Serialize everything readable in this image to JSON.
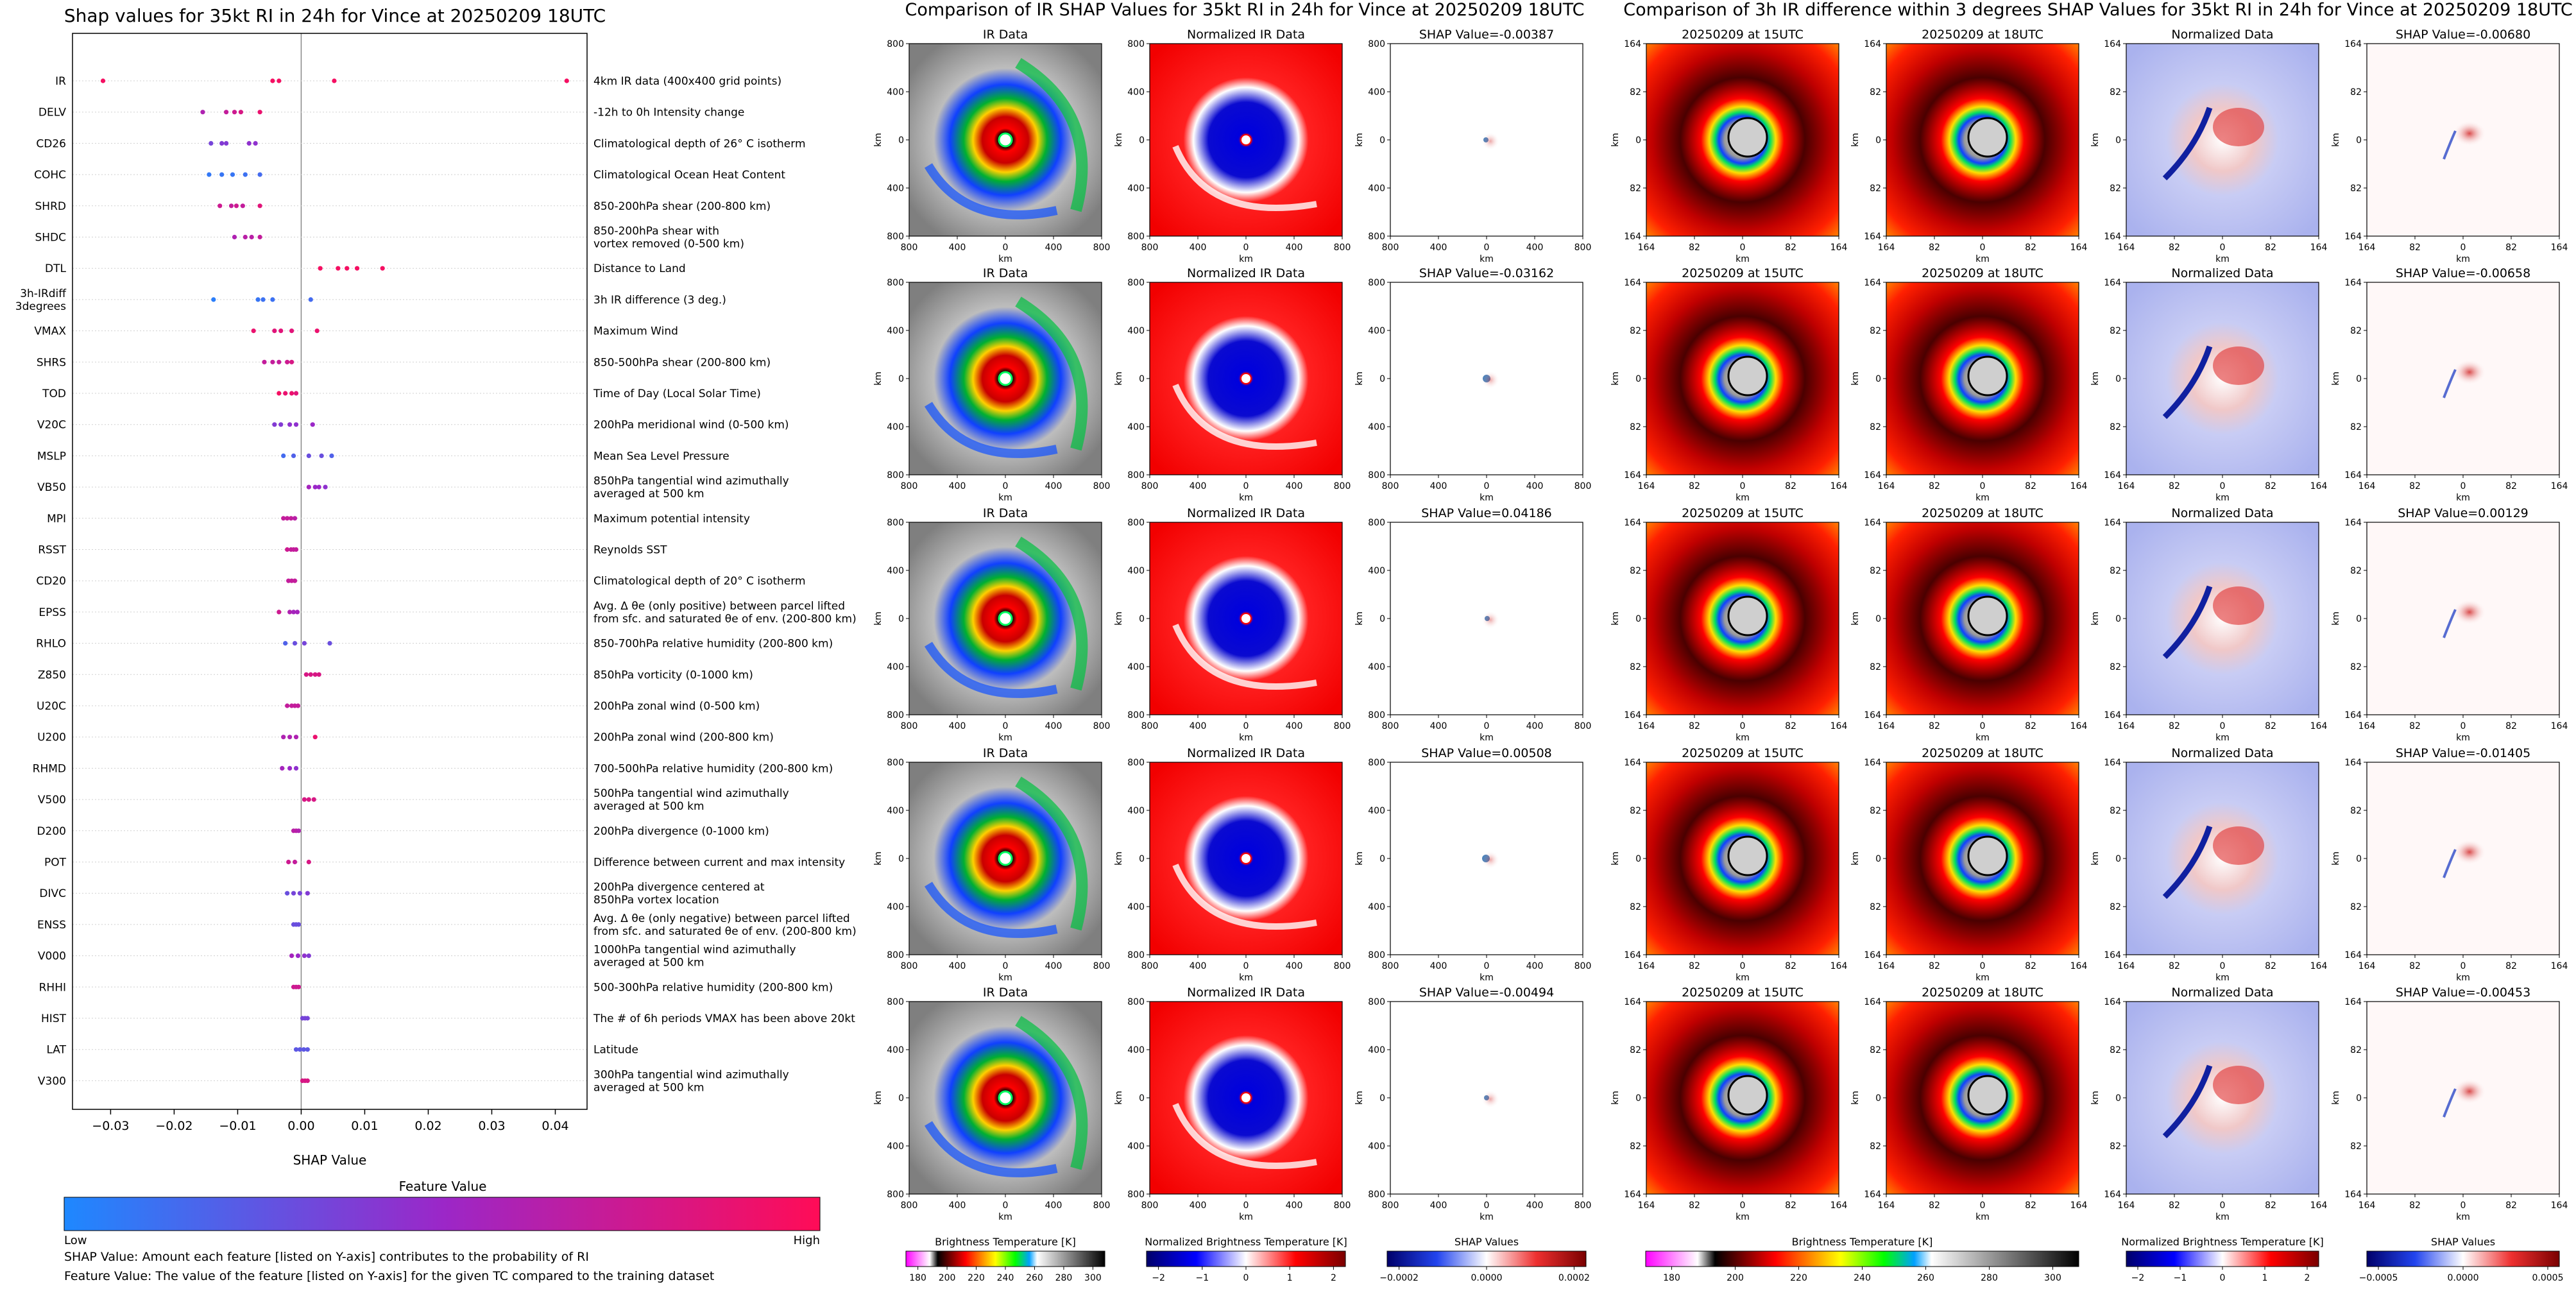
{
  "colors": {
    "low": "#1e88ff",
    "mid": "#9b27c8",
    "high": "#ff0c57",
    "ir_bg": "#9e9e9e",
    "shap_pos": "#b2182b",
    "shap_neg": "#2166ac"
  },
  "beeswarm": {
    "title": "Shap values for 35kt RI in 24h for Vince at 20250209 18UTC",
    "xlabel": "SHAP Value",
    "colorbar_title": "Feature Value",
    "colorbar_low": "Low",
    "colorbar_high": "High",
    "note_shap": "SHAP Value: Amount each feature [listed on Y-axis] contributes to the probability of RI",
    "note_feature": "Feature Value: The value of the feature [listed on Y-axis] for the given TC compared to the training dataset"
  },
  "chart_data": [
    {
      "type": "scatter",
      "title": "Shap values for 35kt RI in 24h for Vince at 20250209 18UTC",
      "xlabel": "SHAP Value",
      "xlim": [
        -0.036,
        0.045
      ],
      "xticks": [
        -0.03,
        -0.02,
        -0.01,
        0.0,
        0.01,
        0.02,
        0.03,
        0.04
      ],
      "xtick_labels": [
        "−0.03",
        "−0.02",
        "−0.01",
        "0.00",
        "0.01",
        "0.02",
        "0.03",
        "0.04"
      ],
      "features": [
        {
          "name": "IR",
          "desc": [
            "4km IR data (400x400 grid points)"
          ],
          "points": [
            [
              -0.0312,
              0.95
            ],
            [
              -0.0045,
              0.95
            ],
            [
              -0.0035,
              0.95
            ],
            [
              0.0052,
              0.95
            ],
            [
              0.0418,
              0.95
            ]
          ]
        },
        {
          "name": "DELV",
          "desc": [
            "-12h to 0h Intensity change"
          ],
          "points": [
            [
              -0.0155,
              0.6
            ],
            [
              -0.0118,
              0.7
            ],
            [
              -0.0105,
              0.75
            ],
            [
              -0.0095,
              0.8
            ],
            [
              -0.0065,
              0.9
            ]
          ]
        },
        {
          "name": "CD26",
          "desc": [
            "Climatological depth of 26° C isotherm"
          ],
          "points": [
            [
              -0.0142,
              0.35
            ],
            [
              -0.0125,
              0.4
            ],
            [
              -0.0118,
              0.4
            ],
            [
              -0.0082,
              0.45
            ],
            [
              -0.0072,
              0.45
            ]
          ]
        },
        {
          "name": "COHC",
          "desc": [
            "Climatological Ocean Heat Content"
          ],
          "points": [
            [
              -0.0145,
              0.08
            ],
            [
              -0.0125,
              0.1
            ],
            [
              -0.0108,
              0.1
            ],
            [
              -0.0088,
              0.12
            ],
            [
              -0.0065,
              0.15
            ]
          ]
        },
        {
          "name": "SHRD",
          "desc": [
            "850-200hPa shear (200-800 km)"
          ],
          "points": [
            [
              -0.0128,
              0.75
            ],
            [
              -0.011,
              0.7
            ],
            [
              -0.0102,
              0.75
            ],
            [
              -0.0092,
              0.7
            ],
            [
              -0.0065,
              0.85
            ]
          ]
        },
        {
          "name": "SHDC",
          "desc": [
            "850-200hPa shear with",
            "vortex removed (0-500 km)"
          ],
          "points": [
            [
              -0.0105,
              0.6
            ],
            [
              -0.0088,
              0.65
            ],
            [
              -0.0078,
              0.65
            ],
            [
              -0.0065,
              0.7
            ]
          ]
        },
        {
          "name": "DTL",
          "desc": [
            "Distance to Land"
          ],
          "points": [
            [
              0.003,
              0.95
            ],
            [
              0.0058,
              0.95
            ],
            [
              0.0072,
              0.95
            ],
            [
              0.0088,
              0.95
            ],
            [
              0.0128,
              0.95
            ]
          ]
        },
        {
          "name": "3h-IRdiff\n3degrees",
          "desc": [
            "3h IR difference (3 deg.)"
          ],
          "points": [
            [
              -0.0138,
              0.05
            ],
            [
              -0.0068,
              0.1
            ],
            [
              -0.006,
              0.12
            ],
            [
              -0.0045,
              0.12
            ],
            [
              0.0015,
              0.15
            ]
          ]
        },
        {
          "name": "VMAX",
          "desc": [
            "Maximum Wind"
          ],
          "points": [
            [
              -0.0075,
              0.9
            ],
            [
              -0.0042,
              0.85
            ],
            [
              -0.0032,
              0.85
            ],
            [
              -0.0015,
              0.85
            ],
            [
              0.0025,
              0.9
            ]
          ]
        },
        {
          "name": "SHRS",
          "desc": [
            "850-500hPa shear (200-800 km)"
          ],
          "points": [
            [
              -0.0058,
              0.7
            ],
            [
              -0.0045,
              0.7
            ],
            [
              -0.0035,
              0.7
            ],
            [
              -0.0022,
              0.75
            ],
            [
              -0.0015,
              0.8
            ]
          ]
        },
        {
          "name": "TOD",
          "desc": [
            "Time of Day (Local Solar Time)"
          ],
          "points": [
            [
              -0.0035,
              0.95
            ],
            [
              -0.0025,
              0.9
            ],
            [
              -0.0015,
              0.9
            ],
            [
              -0.0008,
              0.85
            ]
          ]
        },
        {
          "name": "V20C",
          "desc": [
            "200hPa meridional wind (0-500 km)"
          ],
          "points": [
            [
              -0.0042,
              0.4
            ],
            [
              -0.0032,
              0.4
            ],
            [
              -0.0018,
              0.45
            ],
            [
              -0.0008,
              0.45
            ],
            [
              0.0018,
              0.5
            ]
          ]
        },
        {
          "name": "MSLP",
          "desc": [
            "Mean Sea Level Pressure"
          ],
          "points": [
            [
              -0.0028,
              0.15
            ],
            [
              -0.0012,
              0.2
            ],
            [
              0.0012,
              0.3
            ],
            [
              0.0032,
              0.3
            ],
            [
              0.0048,
              0.2
            ]
          ]
        },
        {
          "name": "VB50",
          "desc": [
            "850hPa tangential wind azimuthally",
            "averaged at 500 km"
          ],
          "points": [
            [
              0.0012,
              0.55
            ],
            [
              0.0022,
              0.5
            ],
            [
              0.0028,
              0.5
            ],
            [
              0.0038,
              0.45
            ]
          ]
        },
        {
          "name": "MPI",
          "desc": [
            "Maximum potential intensity"
          ],
          "points": [
            [
              -0.0028,
              0.7
            ],
            [
              -0.0022,
              0.7
            ],
            [
              -0.0016,
              0.7
            ],
            [
              -0.001,
              0.65
            ]
          ]
        },
        {
          "name": "RSST",
          "desc": [
            "Reynolds SST"
          ],
          "points": [
            [
              -0.0022,
              0.75
            ],
            [
              -0.0016,
              0.7
            ],
            [
              -0.0012,
              0.7
            ],
            [
              -0.0008,
              0.7
            ]
          ]
        },
        {
          "name": "CD20",
          "desc": [
            "Climatological depth of 20° C isotherm"
          ],
          "points": [
            [
              -0.002,
              0.7
            ],
            [
              -0.0015,
              0.7
            ],
            [
              -0.001,
              0.7
            ]
          ]
        },
        {
          "name": "EPSS",
          "desc": [
            "Avg. Δ θe (only positive) between parcel lifted",
            "from sfc. and saturated θe of env. (200-800 km)"
          ],
          "points": [
            [
              -0.0035,
              0.75
            ],
            [
              -0.0018,
              0.6
            ],
            [
              -0.0012,
              0.55
            ],
            [
              -0.0006,
              0.55
            ]
          ]
        },
        {
          "name": "RHLO",
          "desc": [
            "850-700hPa relative humidity (200-800 km)"
          ],
          "points": [
            [
              -0.0025,
              0.2
            ],
            [
              -0.001,
              0.3
            ],
            [
              0.0005,
              0.35
            ],
            [
              0.0045,
              0.3
            ]
          ]
        },
        {
          "name": "Z850",
          "desc": [
            "850hPa vorticity (0-1000 km)"
          ],
          "points": [
            [
              0.0008,
              0.8
            ],
            [
              0.0015,
              0.8
            ],
            [
              0.0022,
              0.8
            ],
            [
              0.0028,
              0.8
            ]
          ]
        },
        {
          "name": "U20C",
          "desc": [
            "200hPa zonal wind (0-500 km)"
          ],
          "points": [
            [
              -0.0022,
              0.7
            ],
            [
              -0.0015,
              0.7
            ],
            [
              -0.001,
              0.7
            ],
            [
              -0.0005,
              0.7
            ]
          ]
        },
        {
          "name": "U200",
          "desc": [
            "200hPa zonal wind (200-800 km)"
          ],
          "points": [
            [
              -0.0028,
              0.6
            ],
            [
              -0.0018,
              0.6
            ],
            [
              -0.0008,
              0.6
            ],
            [
              0.0022,
              0.9
            ]
          ]
        },
        {
          "name": "RHMD",
          "desc": [
            "700-500hPa relative humidity (200-800 km)"
          ],
          "points": [
            [
              -0.003,
              0.55
            ],
            [
              -0.0018,
              0.5
            ],
            [
              -0.0008,
              0.45
            ]
          ]
        },
        {
          "name": "V500",
          "desc": [
            "500hPa tangential wind azimuthally",
            "averaged at 500 km"
          ],
          "points": [
            [
              0.0005,
              0.8
            ],
            [
              0.0012,
              0.8
            ],
            [
              0.002,
              0.8
            ]
          ]
        },
        {
          "name": "D200",
          "desc": [
            "200hPa divergence (0-1000 km)"
          ],
          "points": [
            [
              -0.0012,
              0.65
            ],
            [
              -0.0008,
              0.65
            ],
            [
              -0.0004,
              0.6
            ]
          ]
        },
        {
          "name": "POT",
          "desc": [
            "Difference between current and max intensity"
          ],
          "points": [
            [
              -0.002,
              0.75
            ],
            [
              -0.001,
              0.7
            ],
            [
              0.0012,
              0.8
            ]
          ]
        },
        {
          "name": "DIVC",
          "desc": [
            "200hPa divergence centered at",
            "850hPa vortex location"
          ],
          "points": [
            [
              -0.0022,
              0.3
            ],
            [
              -0.0012,
              0.35
            ],
            [
              -0.0002,
              0.35
            ],
            [
              0.001,
              0.4
            ]
          ]
        },
        {
          "name": "ENSS",
          "desc": [
            "Avg. Δ θe (only negative) between parcel lifted",
            "from sfc. and saturated θe of env. (200-800 km)"
          ],
          "points": [
            [
              -0.0012,
              0.3
            ],
            [
              -0.0008,
              0.3
            ],
            [
              -0.0004,
              0.3
            ]
          ]
        },
        {
          "name": "V000",
          "desc": [
            "1000hPa tangential wind azimuthally",
            "averaged at 500 km"
          ],
          "points": [
            [
              -0.0015,
              0.55
            ],
            [
              -0.0005,
              0.5
            ],
            [
              0.0005,
              0.45
            ],
            [
              0.0012,
              0.4
            ]
          ]
        },
        {
          "name": "RHHI",
          "desc": [
            "500-300hPa relative humidity (200-800 km)"
          ],
          "points": [
            [
              -0.0012,
              0.75
            ],
            [
              -0.0008,
              0.75
            ],
            [
              -0.0004,
              0.75
            ]
          ]
        },
        {
          "name": "HIST",
          "desc": [
            "The # of 6h periods VMAX has been above 20kt"
          ],
          "points": [
            [
              0.0002,
              0.35
            ],
            [
              0.0006,
              0.35
            ],
            [
              0.001,
              0.35
            ]
          ]
        },
        {
          "name": "LAT",
          "desc": [
            "Latitude"
          ],
          "points": [
            [
              -0.0008,
              0.25
            ],
            [
              -0.0002,
              0.25
            ],
            [
              0.0004,
              0.25
            ],
            [
              0.001,
              0.25
            ]
          ]
        },
        {
          "name": "V300",
          "desc": [
            "300hPa tangential wind azimuthally",
            "averaged at 500 km"
          ],
          "points": [
            [
              0.0002,
              0.8
            ],
            [
              0.0006,
              0.8
            ],
            [
              0.001,
              0.8
            ]
          ]
        }
      ]
    },
    {
      "type": "heatmap",
      "title": "Comparison of IR SHAP Values for 35kt RI in 24h for Vince at 20250209 18UTC",
      "xlabel": "km",
      "ylabel": "km",
      "ticks_x": [
        "800",
        "400",
        "0",
        "400",
        "800"
      ],
      "ticks_y": [
        "800",
        "400",
        "0",
        "400",
        "800"
      ],
      "panel_titles": [
        "IR Data",
        "Normalized IR Data"
      ],
      "shap_titles": [
        "SHAP Value=-0.00387",
        "SHAP Value=-0.03162",
        "SHAP Value=0.04186",
        "SHAP Value=0.00508",
        "SHAP Value=-0.00494"
      ],
      "colorbars": [
        {
          "label": "Brightness Temperature [K]",
          "ticks": [
            "180",
            "200",
            "220",
            "240",
            "260",
            "280",
            "300"
          ]
        },
        {
          "label": "Normalized Brightness Temperature [K]",
          "ticks": [
            "−2",
            "−1",
            "0",
            "1",
            "2"
          ]
        },
        {
          "label": "SHAP Values",
          "ticks": [
            "−0.0002",
            "0.0000",
            "0.0002"
          ]
        }
      ]
    },
    {
      "type": "heatmap",
      "title": "Comparison of 3h IR difference within 3 degrees SHAP Values for 35kt RI in 24h for Vince at 20250209 18UTC",
      "xlabel": "km",
      "ylabel": "km",
      "ticks_x": [
        "164",
        "82",
        "0",
        "82",
        "164"
      ],
      "ticks_y": [
        "164",
        "82",
        "0",
        "82",
        "164"
      ],
      "panel_titles": [
        "20250209 at 15UTC",
        "20250209 at 18UTC",
        "Normalized Data"
      ],
      "shap_titles": [
        "SHAP Value=-0.00680",
        "SHAP Value=-0.00658",
        "SHAP Value=0.00129",
        "SHAP Value=-0.01405",
        "SHAP Value=-0.00453"
      ],
      "colorbars": [
        {
          "label": "Brightness Temperature [K]",
          "ticks": [
            "180",
            "200",
            "220",
            "240",
            "260",
            "280",
            "300"
          ]
        },
        {
          "label": "Normalized Brightness Temperature [K]",
          "ticks": [
            "−2",
            "−1",
            "0",
            "1",
            "2"
          ]
        },
        {
          "label": "SHAP Values",
          "ticks": [
            "−0.0005",
            "0.0000",
            "0.0005"
          ]
        }
      ]
    }
  ]
}
